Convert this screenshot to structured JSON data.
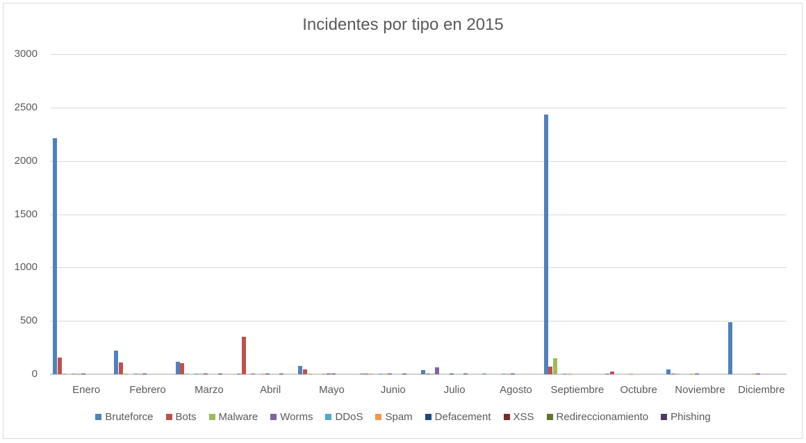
{
  "chart_data": {
    "type": "bar",
    "title": "Incidentes por tipo en 2015",
    "xlabel": "",
    "ylabel": "",
    "ylim": [
      0,
      3000
    ],
    "yticks": [
      0,
      500,
      1000,
      1500,
      2000,
      2500,
      3000
    ],
    "grid": true,
    "legend_position": "bottom",
    "categories": [
      "Enero",
      "Febrero",
      "Marzo",
      "Abril",
      "Mayo",
      "Junio",
      "Julio",
      "Agosto",
      "Septiembre",
      "Octubre",
      "Noviembre",
      "Diciembre"
    ],
    "series": [
      {
        "name": "Bruteforce",
        "color": "#4f81bd",
        "values": [
          2213,
          221,
          117,
          5,
          80,
          5,
          40,
          5,
          2435,
          5,
          45,
          488
        ]
      },
      {
        "name": "Bots",
        "color": "#c0504d",
        "values": [
          155,
          110,
          104,
          352,
          48,
          5,
          8,
          0,
          72,
          25,
          8,
          0
        ]
      },
      {
        "name": "Malware",
        "color": "#9bbb59",
        "values": [
          5,
          5,
          5,
          0,
          5,
          5,
          5,
          0,
          150,
          0,
          5,
          0
        ]
      },
      {
        "name": "Worms",
        "color": "#8064a2",
        "values": [
          0,
          0,
          0,
          5,
          0,
          0,
          65,
          0,
          0,
          0,
          0,
          0
        ]
      },
      {
        "name": "DDoS",
        "color": "#4bacc6",
        "values": [
          8,
          8,
          8,
          0,
          0,
          5,
          0,
          5,
          8,
          0,
          0,
          0
        ]
      },
      {
        "name": "Spam",
        "color": "#f79646",
        "values": [
          8,
          8,
          8,
          5,
          5,
          5,
          0,
          5,
          8,
          5,
          5,
          5
        ]
      },
      {
        "name": "Defacement",
        "color": "#1f497d",
        "values": [
          8,
          8,
          8,
          5,
          5,
          5,
          5,
          5,
          0,
          0,
          5,
          5
        ]
      },
      {
        "name": "XSS",
        "color": "#772c2a",
        "values": [
          0,
          0,
          0,
          0,
          5,
          0,
          0,
          0,
          0,
          0,
          0,
          0
        ]
      },
      {
        "name": "Redireccionamiento",
        "color": "#5f7530",
        "values": [
          0,
          0,
          0,
          0,
          0,
          0,
          0,
          0,
          0,
          0,
          0,
          0
        ]
      },
      {
        "name": "Phishing",
        "color": "#4d3b62",
        "values": [
          0,
          0,
          5,
          5,
          0,
          5,
          5,
          0,
          0,
          0,
          0,
          0
        ]
      }
    ]
  }
}
